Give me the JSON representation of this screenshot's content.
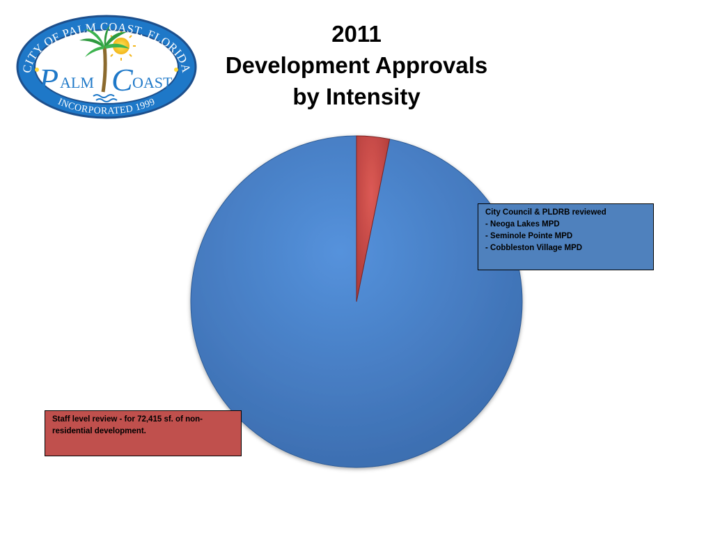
{
  "logo": {
    "top_text": "CITY OF PALM COAST, FLORIDA",
    "bottom_text": "INCORPORATED 1999",
    "word_left": "ALM",
    "word_right": "OAST",
    "letter_left": "P",
    "letter_right": "C"
  },
  "title": {
    "line1": "2011",
    "line2": "Development Approvals",
    "line3": "by Intensity"
  },
  "colors": {
    "blue": "#4f81bd",
    "red": "#c0504d"
  },
  "chart_data": {
    "type": "pie",
    "title": "2011 Development Approvals by Intensity",
    "slices": [
      {
        "value": 96.8,
        "color": "#4f81bd"
      },
      {
        "value": 3.2,
        "color": "#c0504d"
      }
    ],
    "start_angle": "12 o'clock, counter-clockwise"
  },
  "callouts": {
    "blue": {
      "line1": "City Council & PLDRB reviewed",
      "line2": "- Neoga Lakes MPD",
      "line3": "- Seminole Pointe MPD",
      "line4": "- Cobbleston Village MPD"
    },
    "red": {
      "line1": "Staff level review - for 72,415 sf. of non-",
      "line2": "residential development."
    }
  }
}
